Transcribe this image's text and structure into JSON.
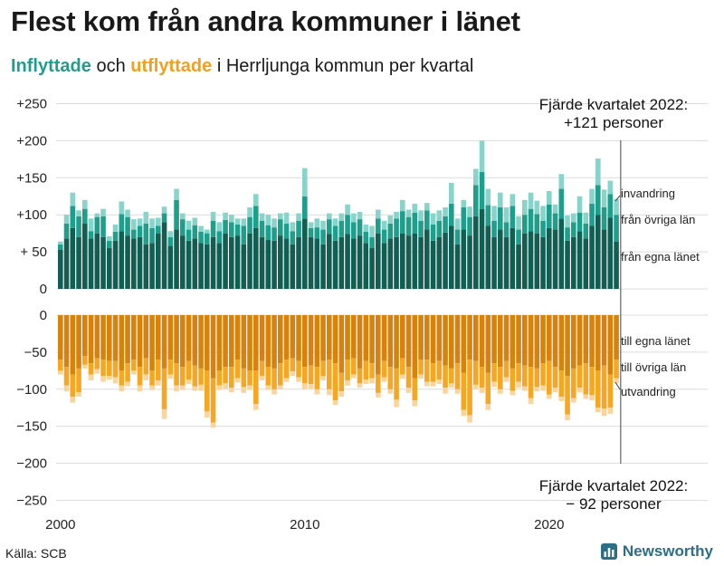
{
  "title": "Flest kom från andra kommuner i länet",
  "subtitle": {
    "in_word": "Inflyttade",
    "mid": " och ",
    "out_word": "utflyttade",
    "rest": " i Herrljunga kommun per kvartal"
  },
  "source": "Källa: SCB",
  "brand": "Newsworthy",
  "colors": {
    "in_same": "#135e52",
    "in_other": "#1f9e8c",
    "in_immig": "#88d3ca",
    "out_same": "#d6820d",
    "out_other": "#f5a623",
    "out_emig": "#fbd49a",
    "grid": "#dcdcdc"
  },
  "chart_data": {
    "type": "bar",
    "stacked": true,
    "diverging": true,
    "title": "Flest kom från andra kommuner i länet",
    "subtitle": "Inflyttade och utflyttade i Herrljunga kommun per kvartal",
    "x_ticks": [
      "2000",
      "2010",
      "2020"
    ],
    "y_ticks": [
      "+250",
      "+200",
      "+150",
      "+100",
      "+ 50",
      "0",
      "0",
      "−50",
      "−100",
      "−150",
      "−200",
      "−250"
    ],
    "ylim_in": [
      0,
      250
    ],
    "ylim_out": [
      -250,
      0
    ],
    "x": [
      "2000 K1",
      "2000 K2",
      "2000 K3",
      "2000 K4",
      "2001 K1",
      "2001 K2",
      "2001 K3",
      "2001 K4",
      "2002 K1",
      "2002 K2",
      "2002 K3",
      "2002 K4",
      "2003 K1",
      "2003 K2",
      "2003 K3",
      "2003 K4",
      "2004 K1",
      "2004 K2",
      "2004 K3",
      "2004 K4",
      "2005 K1",
      "2005 K2",
      "2005 K3",
      "2005 K4",
      "2006 K1",
      "2006 K2",
      "2006 K3",
      "2006 K4",
      "2007 K1",
      "2007 K2",
      "2007 K3",
      "2007 K4",
      "2008 K1",
      "2008 K2",
      "2008 K3",
      "2008 K4",
      "2009 K1",
      "2009 K2",
      "2009 K3",
      "2009 K4",
      "2010 K1",
      "2010 K2",
      "2010 K3",
      "2010 K4",
      "2011 K1",
      "2011 K2",
      "2011 K3",
      "2011 K4",
      "2012 K1",
      "2012 K2",
      "2012 K3",
      "2012 K4",
      "2013 K1",
      "2013 K2",
      "2013 K3",
      "2013 K4",
      "2014 K1",
      "2014 K2",
      "2014 K3",
      "2014 K4",
      "2015 K1",
      "2015 K2",
      "2015 K3",
      "2015 K4",
      "2016 K1",
      "2016 K2",
      "2016 K3",
      "2016 K4",
      "2017 K1",
      "2017 K2",
      "2017 K3",
      "2017 K4",
      "2018 K1",
      "2018 K2",
      "2018 K3",
      "2018 K4",
      "2019 K1",
      "2019 K2",
      "2019 K3",
      "2019 K4",
      "2020 K1",
      "2020 K2",
      "2020 K3",
      "2020 K4",
      "2021 K1",
      "2021 K2",
      "2021 K3",
      "2021 K4",
      "2022 K1",
      "2022 K2",
      "2022 K3",
      "2022 K4"
    ],
    "series": [
      {
        "name": "från egna länet",
        "group": "in",
        "values": [
          53,
          68,
          82,
          70,
          88,
          68,
          75,
          70,
          55,
          65,
          78,
          72,
          68,
          70,
          60,
          62,
          75,
          90,
          58,
          80,
          72,
          65,
          68,
          62,
          60,
          70,
          62,
          75,
          70,
          72,
          60,
          75,
          82,
          70,
          66,
          65,
          72,
          68,
          60,
          70,
          95,
          70,
          68,
          60,
          74,
          65,
          70,
          74,
          68,
          72,
          62,
          55,
          75,
          62,
          68,
          70,
          75,
          72,
          75,
          70,
          80,
          65,
          70,
          76,
          85,
          60,
          80,
          72,
          98,
          108,
          85,
          70,
          80,
          70,
          82,
          60,
          75,
          78,
          75,
          70,
          82,
          80,
          95,
          65,
          70,
          78,
          68,
          85,
          100,
          80,
          96,
          64
        ]
      },
      {
        "name": "från övriga län",
        "group": "in",
        "values": [
          7,
          20,
          30,
          28,
          20,
          10,
          22,
          28,
          10,
          12,
          23,
          25,
          12,
          15,
          28,
          20,
          10,
          12,
          12,
          40,
          22,
          15,
          18,
          15,
          15,
          22,
          16,
          18,
          20,
          15,
          25,
          22,
          30,
          22,
          20,
          18,
          22,
          20,
          18,
          22,
          30,
          12,
          15,
          20,
          20,
          20,
          22,
          26,
          22,
          22,
          15,
          15,
          20,
          18,
          20,
          25,
          30,
          25,
          28,
          22,
          26,
          22,
          22,
          22,
          30,
          20,
          30,
          25,
          42,
          50,
          28,
          22,
          30,
          20,
          30,
          20,
          25,
          30,
          26,
          22,
          32,
          22,
          40,
          18,
          20,
          25,
          20,
          30,
          40,
          30,
          32,
          36
        ]
      },
      {
        "name": "invandring",
        "group": "in",
        "values": [
          4,
          12,
          18,
          8,
          12,
          17,
          5,
          10,
          6,
          10,
          17,
          10,
          14,
          10,
          16,
          13,
          11,
          9,
          8,
          15,
          8,
          12,
          10,
          8,
          5,
          12,
          12,
          10,
          10,
          8,
          10,
          13,
          16,
          10,
          14,
          12,
          8,
          15,
          12,
          10,
          38,
          8,
          12,
          12,
          8,
          10,
          10,
          14,
          12,
          10,
          10,
          15,
          12,
          12,
          11,
          9,
          15,
          10,
          12,
          14,
          10,
          15,
          14,
          12,
          28,
          15,
          10,
          14,
          22,
          42,
          22,
          20,
          20,
          20,
          16,
          18,
          20,
          22,
          18,
          20,
          18,
          12,
          20,
          16,
          12,
          22,
          15,
          20,
          36,
          24,
          18,
          21
        ]
      },
      {
        "name": "till egna länet",
        "group": "out",
        "values": [
          -60,
          -70,
          -80,
          -72,
          -55,
          -65,
          -58,
          -60,
          -62,
          -62,
          -75,
          -65,
          -60,
          -70,
          -58,
          -75,
          -60,
          -72,
          -60,
          -65,
          -70,
          -62,
          -68,
          -72,
          -75,
          -85,
          -75,
          -70,
          -70,
          -60,
          -72,
          -75,
          -75,
          -62,
          -70,
          -72,
          -65,
          -60,
          -58,
          -62,
          -70,
          -68,
          -70,
          -62,
          -60,
          -65,
          -78,
          -60,
          -58,
          -72,
          -62,
          -65,
          -80,
          -62,
          -70,
          -72,
          -58,
          -70,
          -85,
          -60,
          -60,
          -65,
          -62,
          -68,
          -72,
          -65,
          -78,
          -60,
          -62,
          -70,
          -78,
          -65,
          -70,
          -62,
          -72,
          -65,
          -68,
          -70,
          -72,
          -65,
          -62,
          -70,
          -75,
          -82,
          -72,
          -68,
          -65,
          -70,
          -75,
          -68,
          -80,
          -60
        ]
      },
      {
        "name": "till övriga län",
        "group": "out",
        "values": [
          -15,
          -25,
          -30,
          -32,
          -12,
          -15,
          -15,
          -22,
          -20,
          -22,
          -20,
          -25,
          -15,
          -25,
          -22,
          -20,
          -28,
          -55,
          -20,
          -30,
          -25,
          -25,
          -28,
          -22,
          -55,
          -60,
          -20,
          -22,
          -28,
          -25,
          -25,
          -20,
          -45,
          -20,
          -25,
          -28,
          -30,
          -25,
          -18,
          -22,
          -22,
          -25,
          -30,
          -20,
          -40,
          -50,
          -25,
          -28,
          -22,
          -20,
          -25,
          -20,
          -25,
          -22,
          -30,
          -42,
          -22,
          -28,
          -30,
          -20,
          -30,
          -25,
          -25,
          -30,
          -20,
          -35,
          -50,
          -75,
          -32,
          -28,
          -42,
          -25,
          -30,
          -22,
          -30,
          -25,
          -28,
          -42,
          -25,
          -30,
          -45,
          -28,
          -35,
          -52,
          -40,
          -30,
          -42,
          -38,
          -50,
          -58,
          -45,
          -25
        ]
      },
      {
        "name": "utvandring",
        "group": "out",
        "values": [
          -5,
          -8,
          -8,
          -6,
          -5,
          -8,
          -6,
          -8,
          -5,
          -8,
          -8,
          -6,
          -5,
          -8,
          -8,
          -6,
          -7,
          -13,
          -6,
          -8,
          -6,
          -6,
          -6,
          -8,
          -8,
          -7,
          -6,
          -7,
          -6,
          -6,
          -8,
          -6,
          -8,
          -6,
          -6,
          -7,
          -5,
          -5,
          -6,
          -6,
          -8,
          -6,
          -7,
          -6,
          -8,
          -6,
          -7,
          -7,
          -5,
          -6,
          -6,
          -7,
          -6,
          -6,
          -6,
          -10,
          -6,
          -7,
          -8,
          -6,
          -6,
          -6,
          -6,
          -8,
          -6,
          -6,
          -8,
          -10,
          -6,
          -7,
          -8,
          -7,
          -6,
          -6,
          -6,
          -8,
          -6,
          -8,
          -6,
          -7,
          -6,
          -6,
          -6,
          -8,
          -6,
          -6,
          -6,
          -7,
          -6,
          -10,
          -8,
          -7
        ]
      }
    ],
    "legend_in": [
      "invandring",
      "från övriga län",
      "från egna länet"
    ],
    "legend_out": [
      "till egna länet",
      "till övriga län",
      "utvandring"
    ],
    "annotations": {
      "in_line1": "Fjärde kvartalet 2022:",
      "in_line2": "+121 personer",
      "out_line1": "Fjärde kvartalet 2022:",
      "out_line2": "− 92 personer"
    }
  }
}
